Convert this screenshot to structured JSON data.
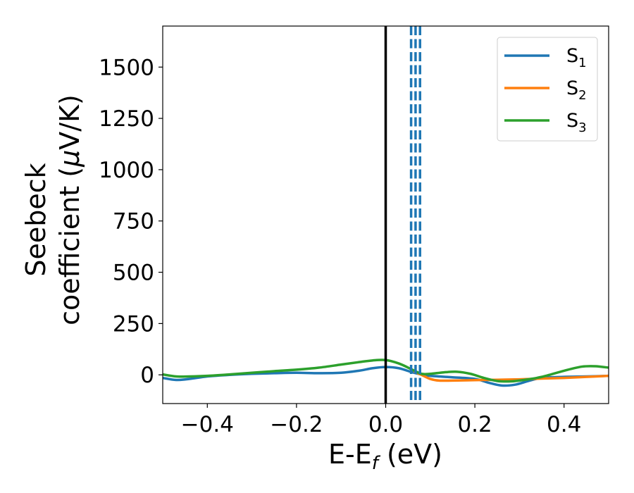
{
  "chart_data": {
    "type": "line",
    "xlabel": "E-E",
    "xlabel_sub": "f",
    "xlabel_unit": " (eV)",
    "ylabel_line1": "Seebeck",
    "ylabel_line2": "coefficient  (",
    "ylabel_mu": "μ",
    "ylabel_unit": "V/K)",
    "xlim": [
      -0.5,
      0.5
    ],
    "ylim": [
      -140,
      1700
    ],
    "xticks": [
      -0.4,
      -0.2,
      0.0,
      0.2,
      0.4
    ],
    "xtick_labels": [
      "−0.4",
      "−0.2",
      "0.0",
      "0.2",
      "0.4"
    ],
    "yticks": [
      0,
      250,
      500,
      750,
      1000,
      1250,
      1500
    ],
    "ytick_labels": [
      "0",
      "250",
      "500",
      "750",
      "1000",
      "1250",
      "1500"
    ],
    "legend_position": "top-right",
    "grid": false,
    "fermi_level_line": {
      "x": 0.0,
      "color": "#000000"
    },
    "dashed_lines": {
      "x": [
        0.057,
        0.067,
        0.077
      ],
      "color": "#1f77b4"
    },
    "series": [
      {
        "name": "S",
        "subscript": "1",
        "color": "#1f77b4",
        "x": [
          -0.5,
          -0.47,
          -0.44,
          -0.4,
          -0.35,
          -0.3,
          -0.25,
          -0.2,
          -0.15,
          -0.1,
          -0.06,
          -0.03,
          0.0,
          0.03,
          0.06,
          0.08,
          0.1,
          0.15,
          0.2,
          0.23,
          0.26,
          0.29,
          0.32,
          0.35,
          0.4,
          0.45,
          0.5
        ],
        "values": [
          -15,
          -25,
          -20,
          -8,
          0,
          5,
          8,
          10,
          8,
          10,
          20,
          32,
          38,
          32,
          12,
          2,
          -5,
          -12,
          -20,
          -38,
          -52,
          -48,
          -30,
          -15,
          -10,
          -8,
          -5
        ]
      },
      {
        "name": "S",
        "subscript": "2",
        "color": "#ff7f0e",
        "x": [
          0.065,
          0.08,
          0.1,
          0.12,
          0.15,
          0.2,
          0.25,
          0.3,
          0.35,
          0.4,
          0.45,
          0.5
        ],
        "values": [
          15,
          0,
          -20,
          -28,
          -28,
          -26,
          -24,
          -22,
          -18,
          -15,
          -10,
          -5
        ]
      },
      {
        "name": "S",
        "subscript": "3",
        "color": "#2ca02c",
        "x": [
          -0.5,
          -0.47,
          -0.44,
          -0.4,
          -0.35,
          -0.3,
          -0.25,
          -0.2,
          -0.15,
          -0.1,
          -0.06,
          -0.03,
          0.0,
          0.03,
          0.06,
          0.08,
          0.1,
          0.13,
          0.16,
          0.19,
          0.22,
          0.25,
          0.28,
          0.31,
          0.35,
          0.4,
          0.44,
          0.47,
          0.5
        ],
        "values": [
          2,
          -8,
          -8,
          -5,
          2,
          10,
          18,
          25,
          35,
          50,
          62,
          70,
          72,
          55,
          25,
          5,
          5,
          12,
          15,
          5,
          -15,
          -30,
          -32,
          -25,
          -10,
          20,
          40,
          42,
          35
        ]
      }
    ]
  }
}
